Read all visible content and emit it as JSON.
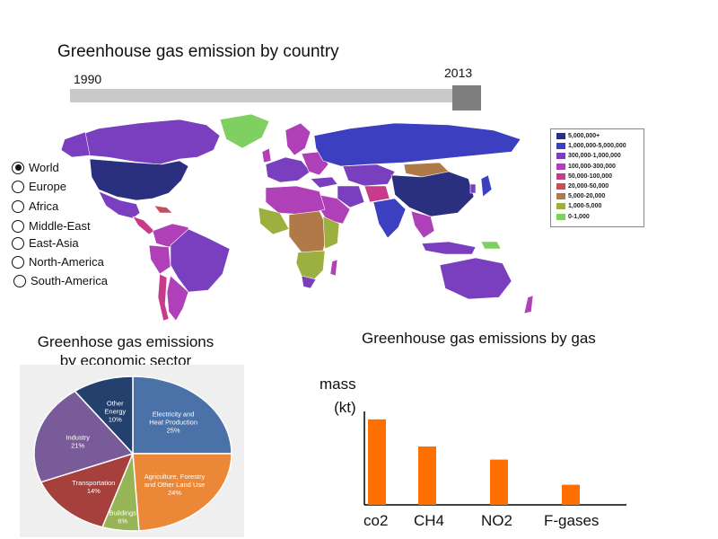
{
  "title": "Greenhouse gas emission by country",
  "slider": {
    "start_label": "1990",
    "end_label": "2013"
  },
  "regions": [
    "World",
    "Europe",
    "Africa",
    "Middle-East",
    "East-Asia",
    "North-America",
    "South-America"
  ],
  "selected_region": "World",
  "map_legend": [
    {
      "label": "5,000,000+",
      "color": "#2a2f7f"
    },
    {
      "label": "1,000,000-5,000,000",
      "color": "#3b3fc0"
    },
    {
      "label": "300,000-1,000,000",
      "color": "#7a3fbf"
    },
    {
      "label": "100,000-300,000",
      "color": "#b040b8"
    },
    {
      "label": "50,000-100,000",
      "color": "#c83a8a"
    },
    {
      "label": "20,000-50,000",
      "color": "#c05060"
    },
    {
      "label": "5,000-20,000",
      "color": "#b07a48"
    },
    {
      "label": "1,000-5,000",
      "color": "#9cb040"
    },
    {
      "label": "0-1,000",
      "color": "#7fd060"
    }
  ],
  "chart_data": [
    {
      "type": "pie",
      "title": "Greenhose gas emissions by economic sector",
      "title_lines": [
        "Greenhose gas emissions",
        "by economic sector"
      ],
      "slices": [
        {
          "label": "Electricity and Heat Production",
          "label_lines": [
            "Electricity and",
            "Heat Production"
          ],
          "value": 25,
          "pct_label": "25%",
          "color": "#4a71a8"
        },
        {
          "label": "Agriculture, Forestry and Other Land Use",
          "label_lines": [
            "Agriculture, Forestry",
            "and Other Land Use"
          ],
          "value": 24,
          "pct_label": "24%",
          "color": "#eb8838"
        },
        {
          "label": "Buildings",
          "label_lines": [
            "Buildings"
          ],
          "value": 6,
          "pct_label": "6%",
          "color": "#97b556"
        },
        {
          "label": "Transportation",
          "label_lines": [
            "Transportation"
          ],
          "value": 14,
          "pct_label": "14%",
          "color": "#a5403d"
        },
        {
          "label": "Industry",
          "label_lines": [
            "Industry"
          ],
          "value": 21,
          "pct_label": "21%",
          "color": "#7a5b9a"
        },
        {
          "label": "Other Energy",
          "label_lines": [
            "Other",
            "Energy"
          ],
          "value": 10,
          "pct_label": "10%",
          "color": "#24406c"
        }
      ]
    },
    {
      "type": "bar",
      "title": "Greenhouse gas emissions by gas",
      "ylabel": "mass (kt)",
      "ylabel_lines": [
        "mass",
        "(kt)"
      ],
      "categories": [
        "co2",
        "CH4",
        "NO2",
        "F-gases"
      ],
      "values": [
        85,
        58,
        45,
        20
      ],
      "color": "#ff6f00",
      "ylim": [
        0,
        100
      ]
    }
  ]
}
